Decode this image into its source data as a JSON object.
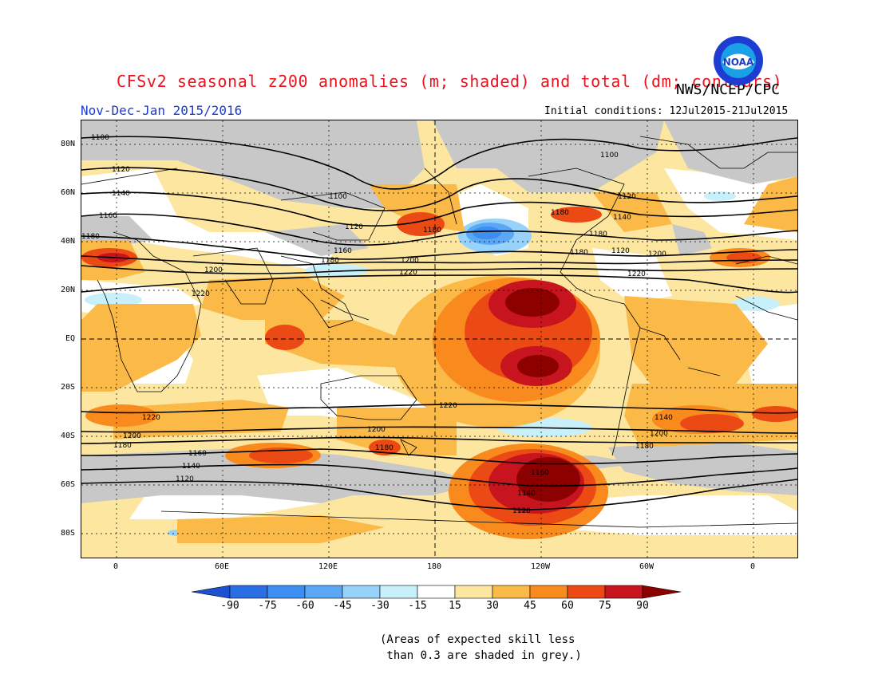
{
  "title": "CFSv2 seasonal z200 anomalies (m; shaded) and total (dm; contours)",
  "org": "NWS/NCEP/CPC",
  "logo_text": "NOAA",
  "period": "Nov-Dec-Jan 2015/2016",
  "initial_conditions": "Initial conditions: 12Jul2015-21Jul2015",
  "lat_labels": [
    "80N",
    "60N",
    "40N",
    "20N",
    "EQ",
    "20S",
    "40S",
    "60S",
    "80S"
  ],
  "lon_labels": [
    "0",
    "60E",
    "120E",
    "180",
    "120W",
    "60W",
    "0"
  ],
  "colorbar": {
    "labels": [
      "-90",
      "-75",
      "-60",
      "-45",
      "-30",
      "-15",
      "15",
      "30",
      "45",
      "60",
      "75",
      "90"
    ],
    "colors": [
      "#1e50d2",
      "#2a6ee6",
      "#3d8ef0",
      "#5aa8f5",
      "#96d2fa",
      "#c8f0fa",
      "#ffffff",
      "#fde7a0",
      "#fbb948",
      "#f88a1e",
      "#ec4a14",
      "#c8141e",
      "#8c0000"
    ]
  },
  "contour_labels": [
    "1100",
    "1100",
    "1100",
    "1120",
    "1120",
    "1120",
    "1120",
    "1120",
    "1140",
    "1140",
    "1140",
    "1140",
    "1160",
    "1160",
    "1160",
    "1160",
    "1180",
    "1180",
    "1180",
    "1180",
    "1180",
    "1180",
    "1180",
    "1180",
    "1180",
    "1200",
    "1200",
    "1200",
    "1200",
    "1200",
    "1200",
    "1220",
    "1220",
    "1220",
    "1220",
    "1220",
    "1140",
    "1120"
  ],
  "skill_note": "(Areas of expected skill less\n than 0.3 are shaded in grey.)"
}
